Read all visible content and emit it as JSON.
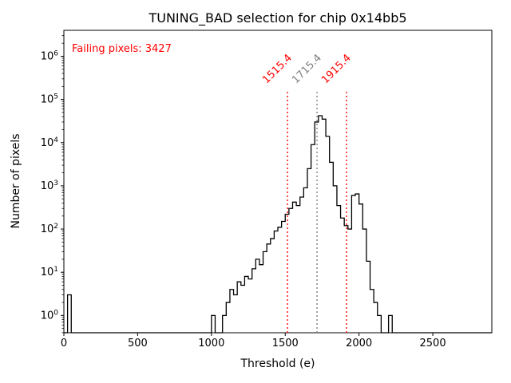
{
  "chart_data": {
    "type": "histogram",
    "title": "TUNING_BAD selection for chip 0x14bb5",
    "xlabel": "Threshold (e)",
    "ylabel": "Number of pixels",
    "annotation": "Failing pixels: 3427",
    "annotation_color": "#ff0000",
    "line_color": "#000000",
    "xlim": [
      0,
      2900
    ],
    "ylog_range": [
      -0.4,
      6.6
    ],
    "x_ticks": [
      0,
      500,
      1000,
      1500,
      2000,
      2500
    ],
    "y_tick_exponents": [
      0,
      1,
      2,
      3,
      4,
      5,
      6
    ],
    "grid": false,
    "legend": "none",
    "bin_width": 25,
    "bins": [
      [
        25,
        3
      ],
      [
        1000,
        1
      ],
      [
        1075,
        1
      ],
      [
        1100,
        2
      ],
      [
        1125,
        4
      ],
      [
        1150,
        3
      ],
      [
        1175,
        6
      ],
      [
        1200,
        5
      ],
      [
        1225,
        8
      ],
      [
        1250,
        7
      ],
      [
        1275,
        12
      ],
      [
        1300,
        20
      ],
      [
        1325,
        15
      ],
      [
        1350,
        30
      ],
      [
        1375,
        45
      ],
      [
        1400,
        60
      ],
      [
        1425,
        90
      ],
      [
        1450,
        110
      ],
      [
        1475,
        150
      ],
      [
        1500,
        220
      ],
      [
        1525,
        300
      ],
      [
        1550,
        420
      ],
      [
        1575,
        350
      ],
      [
        1600,
        550
      ],
      [
        1625,
        900
      ],
      [
        1650,
        2500
      ],
      [
        1675,
        9000
      ],
      [
        1700,
        30000
      ],
      [
        1725,
        42000
      ],
      [
        1750,
        35000
      ],
      [
        1775,
        14000
      ],
      [
        1800,
        3500
      ],
      [
        1825,
        1000
      ],
      [
        1850,
        350
      ],
      [
        1875,
        180
      ],
      [
        1900,
        120
      ],
      [
        1925,
        100
      ],
      [
        1950,
        600
      ],
      [
        1975,
        650
      ],
      [
        2000,
        380
      ],
      [
        2025,
        100
      ],
      [
        2050,
        18
      ],
      [
        2075,
        4
      ],
      [
        2100,
        2
      ],
      [
        2125,
        1
      ],
      [
        2200,
        1
      ]
    ],
    "vline_top": 150000,
    "vlines": [
      {
        "x": 1515.4,
        "label": "1515.4",
        "color": "#ff0000"
      },
      {
        "x": 1715.4,
        "label": "1715.4",
        "color": "#808080"
      },
      {
        "x": 1915.4,
        "label": "1915.4",
        "color": "#ff0000"
      }
    ]
  }
}
